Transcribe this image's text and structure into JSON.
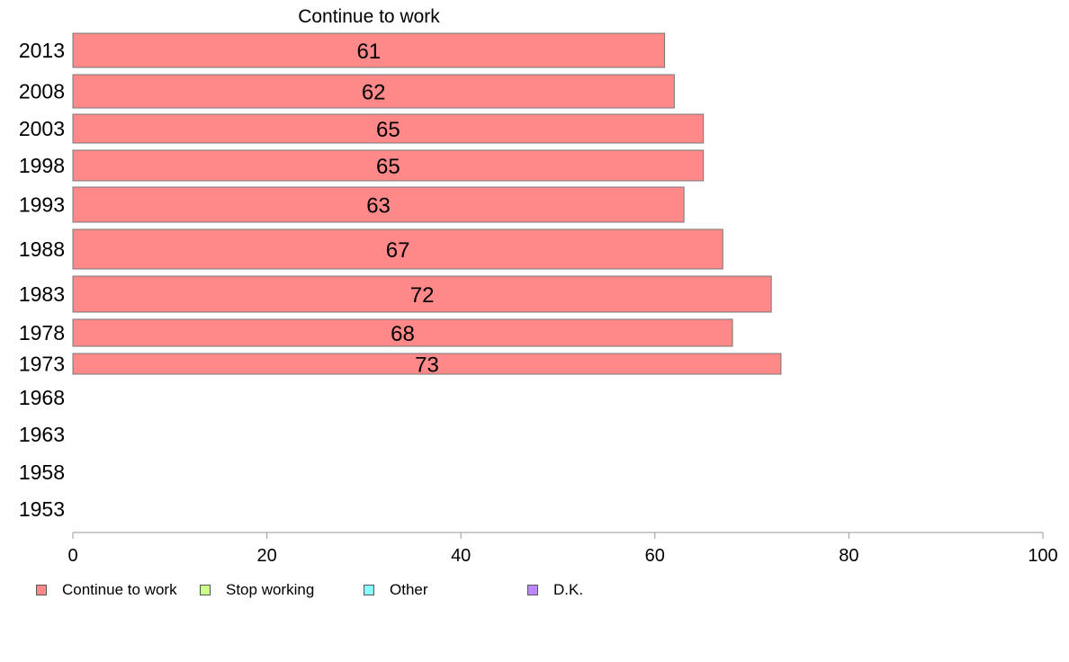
{
  "chart_data": {
    "type": "bar",
    "orientation": "horizontal",
    "title": "Continue to work",
    "categories": [
      "2013",
      "2008",
      "2003",
      "1998",
      "1993",
      "1988",
      "1983",
      "1978",
      "1973",
      "1968",
      "1963",
      "1958",
      "1953"
    ],
    "series": [
      {
        "name": "Continue to work",
        "color": "#ff8888",
        "values": [
          61,
          62,
          65,
          65,
          63,
          67,
          72,
          68,
          73,
          null,
          null,
          null,
          null
        ]
      },
      {
        "name": "Stop working",
        "color": "#ccff88",
        "values": [
          null,
          null,
          null,
          null,
          null,
          null,
          null,
          null,
          null,
          null,
          null,
          null,
          null
        ]
      },
      {
        "name": "Other",
        "color": "#88ffff",
        "values": [
          null,
          null,
          null,
          null,
          null,
          null,
          null,
          null,
          null,
          null,
          null,
          null,
          null
        ]
      },
      {
        "name": "D.K.",
        "color": "#bb88ff",
        "values": [
          null,
          null,
          null,
          null,
          null,
          null,
          null,
          null,
          null,
          null,
          null,
          null,
          null
        ]
      }
    ],
    "data_labels": [
      "61",
      "62",
      "65",
      "65",
      "63",
      "67",
      "72",
      "68",
      "73",
      "",
      "",
      "",
      ""
    ],
    "xlim": [
      0,
      100
    ],
    "x_ticks": [
      0,
      20,
      40,
      60,
      80,
      100
    ],
    "grid": false,
    "legend_position": "bottom-left"
  }
}
